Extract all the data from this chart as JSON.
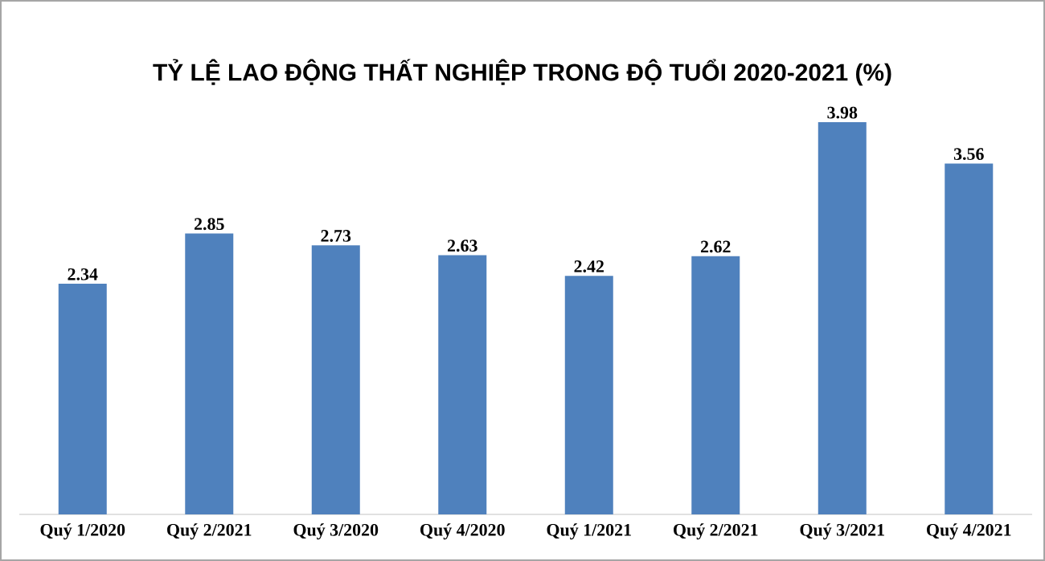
{
  "chart_data": {
    "type": "bar",
    "title": "TỶ LỆ LAO ĐỘNG THẤT NGHIỆP TRONG ĐỘ TUỔI 2020-2021 (%)",
    "categories": [
      "Quý 1/2020",
      "Quý 2/2021",
      "Quý 3/2020",
      "Quý 4/2020",
      "Quý 1/2021",
      "Quý 2/2021",
      "Quý 3/2021",
      "Quý 4/2021"
    ],
    "values": [
      2.34,
      2.85,
      2.73,
      2.63,
      2.42,
      2.62,
      3.98,
      3.56
    ],
    "color": "#4f81bd",
    "tick_labels": "x",
    "data_labels": true
  }
}
